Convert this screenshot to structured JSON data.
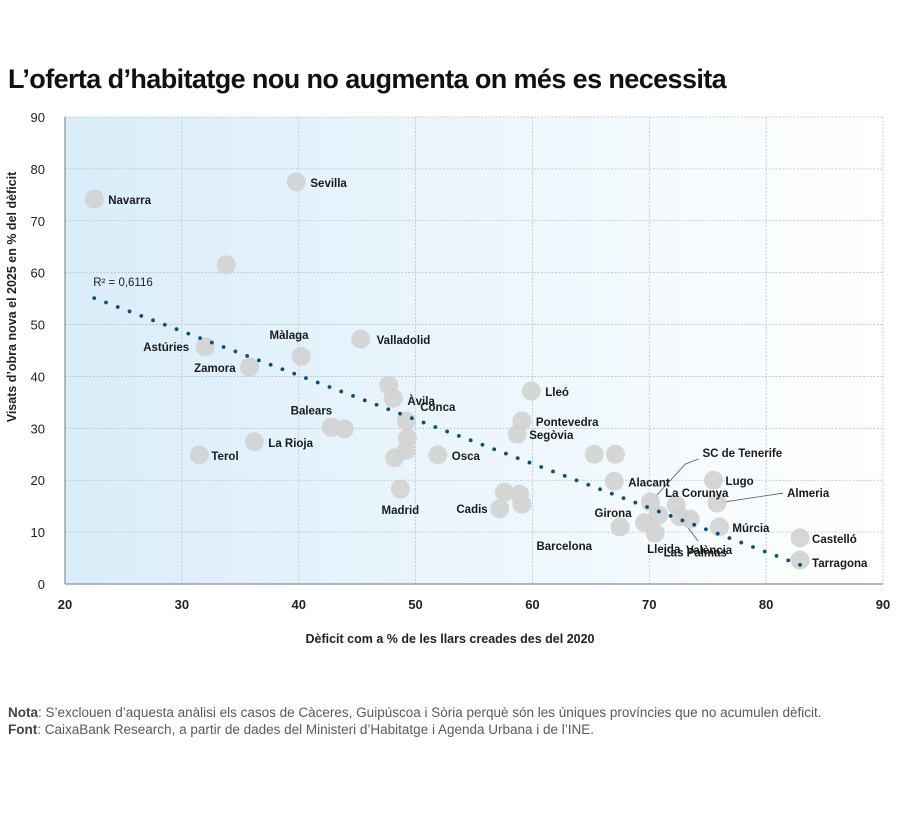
{
  "title": "L’oferta d’habitatge nou no augmenta on més es necessita",
  "notes": {
    "nota_label": "Nota",
    "nota_text": ": S’exclouen d’aquesta anàlisi els casos de Càceres, Guipúscoa i Sòria perquè són les úniques províncies que no acumulen dèficit.",
    "font_label": "Font",
    "font_text": ": CaixaBank Research, a partir de dades del Ministeri d’Habitatge i Agenda Urbana i de l’INE."
  },
  "colors": {
    "point": "#d3d3d3",
    "trend": "#0b4f7c",
    "bg_left": "#d9edfa",
    "bg_right": "#ffffff",
    "grid": "#b9c2c9"
  },
  "chart_data": {
    "type": "scatter",
    "title": "L’oferta d’habitatge nou no augmenta on més es necessita",
    "xlabel": "Dèficit com a % de les llars creades des del 2020",
    "ylabel": "Visats d’obra nova el 2025 en % del dèficit",
    "xlim": [
      20,
      90
    ],
    "ylim": [
      0,
      90
    ],
    "xticks": [
      20,
      30,
      40,
      50,
      60,
      70,
      80,
      90
    ],
    "yticks": [
      0,
      10,
      20,
      30,
      40,
      50,
      60,
      70,
      80,
      90
    ],
    "grid": true,
    "trendline": {
      "type": "linear",
      "x": [
        22.5,
        82.9
      ],
      "y": [
        55.1,
        3.7
      ],
      "r2_label": "R² = 0,6116"
    },
    "points": [
      {
        "name": "Navarra",
        "x": 22.5,
        "y": 74.2,
        "label": true
      },
      {
        "name": "",
        "x": 33.8,
        "y": 61.5,
        "label": false
      },
      {
        "name": "Sevilla",
        "x": 39.8,
        "y": 77.5,
        "label": true
      },
      {
        "name": "Astúries",
        "x": 32.0,
        "y": 45.7,
        "label": true
      },
      {
        "name": "Zamora",
        "x": 35.8,
        "y": 41.8,
        "label": true
      },
      {
        "name": "Màlaga",
        "x": 40.2,
        "y": 43.9,
        "label": true
      },
      {
        "name": "Valladolid",
        "x": 45.3,
        "y": 47.2,
        "label": true
      },
      {
        "name": "Terol",
        "x": 31.5,
        "y": 24.9,
        "label": true
      },
      {
        "name": "La Rioja",
        "x": 36.2,
        "y": 27.4,
        "label": true
      },
      {
        "name": "Balears",
        "x": 42.8,
        "y": 30.2,
        "label": true
      },
      {
        "name": "",
        "x": 43.9,
        "y": 29.9,
        "label": false
      },
      {
        "name": "",
        "x": 47.7,
        "y": 38.3,
        "label": false
      },
      {
        "name": "Àvila",
        "x": 48.1,
        "y": 35.8,
        "label": true
      },
      {
        "name": "Conca",
        "x": 49.2,
        "y": 31.4,
        "label": true
      },
      {
        "name": "",
        "x": 49.3,
        "y": 28.1,
        "label": false
      },
      {
        "name": "",
        "x": 49.2,
        "y": 25.8,
        "label": false
      },
      {
        "name": "",
        "x": 48.2,
        "y": 24.3,
        "label": false
      },
      {
        "name": "Madrid",
        "x": 48.7,
        "y": 18.3,
        "label": true
      },
      {
        "name": "Osca",
        "x": 51.9,
        "y": 24.9,
        "label": true
      },
      {
        "name": "Lleó",
        "x": 59.9,
        "y": 37.2,
        "label": true
      },
      {
        "name": "Pontevedra",
        "x": 59.1,
        "y": 31.4,
        "label": true
      },
      {
        "name": "Segòvia",
        "x": 58.7,
        "y": 28.9,
        "label": true
      },
      {
        "name": "",
        "x": 57.6,
        "y": 17.7,
        "label": false
      },
      {
        "name": "",
        "x": 58.9,
        "y": 17.3,
        "label": false
      },
      {
        "name": "",
        "x": 59.1,
        "y": 15.4,
        "label": false
      },
      {
        "name": "Cadis",
        "x": 57.2,
        "y": 14.5,
        "label": true
      },
      {
        "name": "",
        "x": 65.3,
        "y": 25.0,
        "label": false
      },
      {
        "name": "",
        "x": 67.1,
        "y": 25.0,
        "label": false
      },
      {
        "name": "Alacant",
        "x": 67.0,
        "y": 19.8,
        "label": true
      },
      {
        "name": "SC de Tenerife",
        "x": 70.1,
        "y": 15.8,
        "label": true
      },
      {
        "name": "Barcelona",
        "x": 67.5,
        "y": 11.0,
        "label": true
      },
      {
        "name": "Girona",
        "x": 69.6,
        "y": 11.8,
        "label": true
      },
      {
        "name": "Lleida",
        "x": 70.5,
        "y": 9.8,
        "label": true
      },
      {
        "name": "",
        "x": 70.8,
        "y": 13.3,
        "label": false
      },
      {
        "name": "La Corunya",
        "x": 72.3,
        "y": 15.2,
        "label": true
      },
      {
        "name": "Las Palmas",
        "x": 72.6,
        "y": 13.0,
        "label": true
      },
      {
        "name": "València",
        "x": 73.5,
        "y": 12.5,
        "label": true
      },
      {
        "name": "Lugo",
        "x": 75.5,
        "y": 20.0,
        "label": true
      },
      {
        "name": "Almeria",
        "x": 75.8,
        "y": 15.6,
        "label": true
      },
      {
        "name": "Múrcia",
        "x": 76.0,
        "y": 11.0,
        "label": true
      },
      {
        "name": "Castelló",
        "x": 82.9,
        "y": 8.9,
        "label": true
      },
      {
        "name": "Tarragona",
        "x": 82.9,
        "y": 4.6,
        "label": true
      }
    ]
  }
}
